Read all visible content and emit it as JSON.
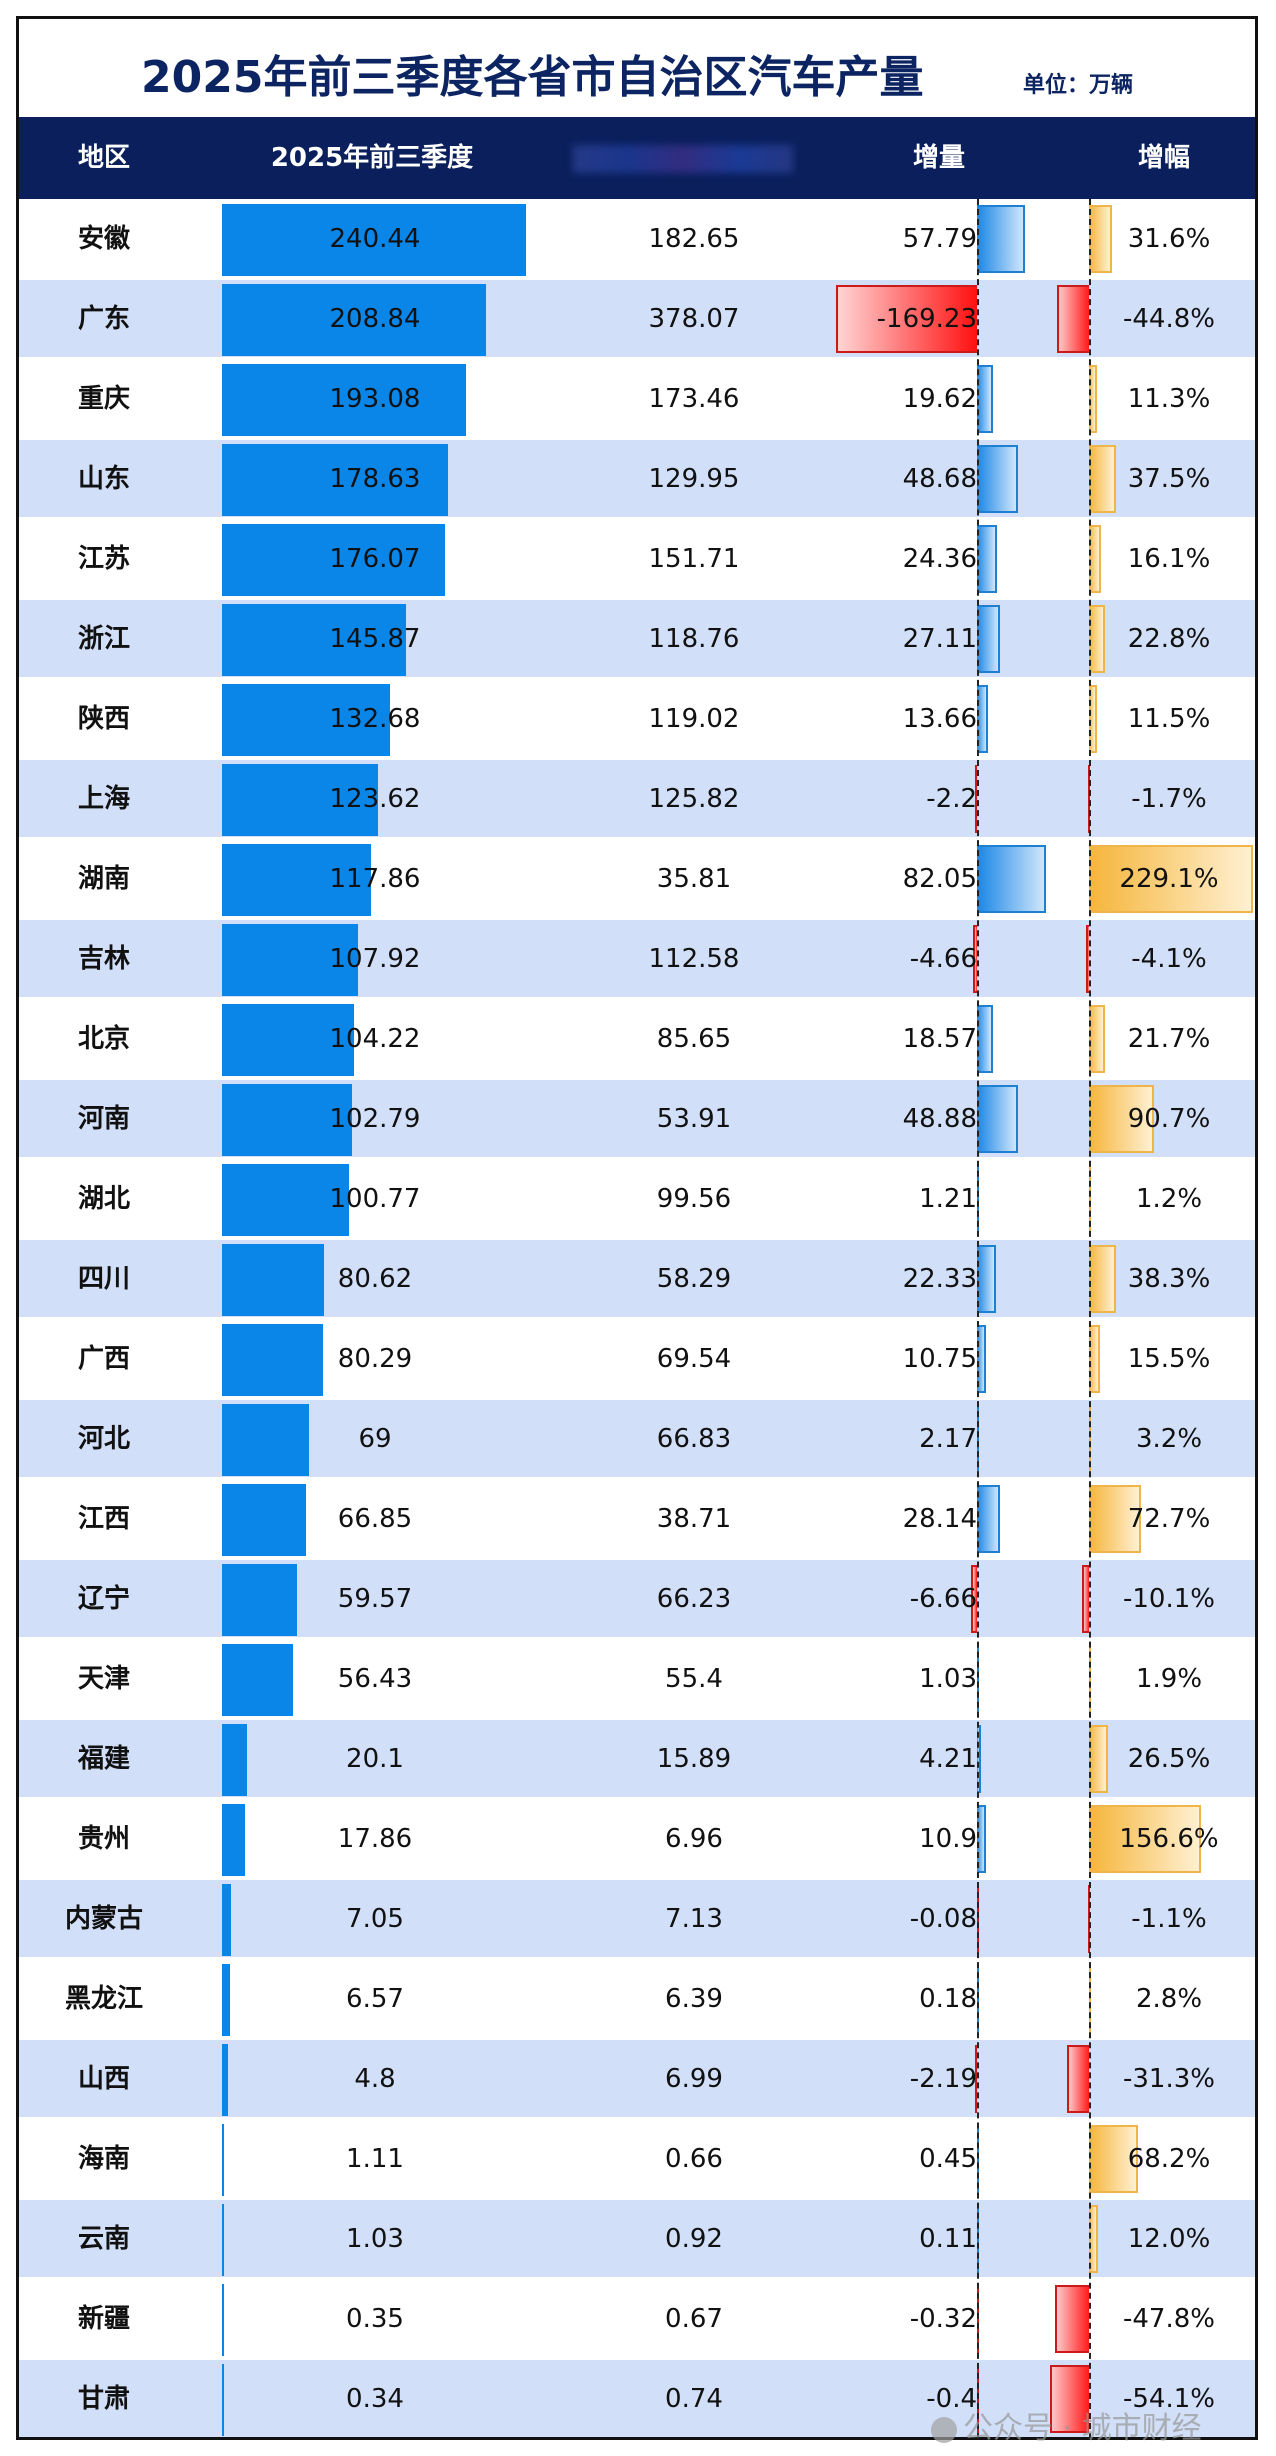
{
  "title": "2025年前三季度各省市自治区汽车产量",
  "unit": "单位：万辆",
  "headers": {
    "region": "地区",
    "current": "2025年前三季度",
    "previous": "",
    "increase": "增量",
    "growth": "增幅"
  },
  "colors": {
    "header_bg": "#0a1f5c",
    "title": "#0c2461",
    "row_alt": "#d2dff8",
    "bar": "#0a86e8",
    "positive_increase": "#1a86e6",
    "negative": "#ff1010",
    "positive_growth": "#f5b53a"
  },
  "watermark": "公众号 · 城市财经",
  "rows": [
    {
      "region": "安徽",
      "current": "240.44",
      "previous": "182.65",
      "increase": "57.79",
      "growth": "31.6%"
    },
    {
      "region": "广东",
      "current": "208.84",
      "previous": "378.07",
      "increase": "-169.23",
      "growth": "-44.8%"
    },
    {
      "region": "重庆",
      "current": "193.08",
      "previous": "173.46",
      "increase": "19.62",
      "growth": "11.3%"
    },
    {
      "region": "山东",
      "current": "178.63",
      "previous": "129.95",
      "increase": "48.68",
      "growth": "37.5%"
    },
    {
      "region": "江苏",
      "current": "176.07",
      "previous": "151.71",
      "increase": "24.36",
      "growth": "16.1%"
    },
    {
      "region": "浙江",
      "current": "145.87",
      "previous": "118.76",
      "increase": "27.11",
      "growth": "22.8%"
    },
    {
      "region": "陕西",
      "current": "132.68",
      "previous": "119.02",
      "increase": "13.66",
      "growth": "11.5%"
    },
    {
      "region": "上海",
      "current": "123.62",
      "previous": "125.82",
      "increase": "-2.2",
      "growth": "-1.7%"
    },
    {
      "region": "湖南",
      "current": "117.86",
      "previous": "35.81",
      "increase": "82.05",
      "growth": "229.1%"
    },
    {
      "region": "吉林",
      "current": "107.92",
      "previous": "112.58",
      "increase": "-4.66",
      "growth": "-4.1%"
    },
    {
      "region": "北京",
      "current": "104.22",
      "previous": "85.65",
      "increase": "18.57",
      "growth": "21.7%"
    },
    {
      "region": "河南",
      "current": "102.79",
      "previous": "53.91",
      "increase": "48.88",
      "growth": "90.7%"
    },
    {
      "region": "湖北",
      "current": "100.77",
      "previous": "99.56",
      "increase": "1.21",
      "growth": "1.2%"
    },
    {
      "region": "四川",
      "current": "80.62",
      "previous": "58.29",
      "increase": "22.33",
      "growth": "38.3%"
    },
    {
      "region": "广西",
      "current": "80.29",
      "previous": "69.54",
      "increase": "10.75",
      "growth": "15.5%"
    },
    {
      "region": "河北",
      "current": "69",
      "previous": "66.83",
      "increase": "2.17",
      "growth": "3.2%"
    },
    {
      "region": "江西",
      "current": "66.85",
      "previous": "38.71",
      "increase": "28.14",
      "growth": "72.7%"
    },
    {
      "region": "辽宁",
      "current": "59.57",
      "previous": "66.23",
      "increase": "-6.66",
      "growth": "-10.1%"
    },
    {
      "region": "天津",
      "current": "56.43",
      "previous": "55.4",
      "increase": "1.03",
      "growth": "1.9%"
    },
    {
      "region": "福建",
      "current": "20.1",
      "previous": "15.89",
      "increase": "4.21",
      "growth": "26.5%"
    },
    {
      "region": "贵州",
      "current": "17.86",
      "previous": "6.96",
      "increase": "10.9",
      "growth": "156.6%"
    },
    {
      "region": "内蒙古",
      "current": "7.05",
      "previous": "7.13",
      "increase": "-0.08",
      "growth": "-1.1%"
    },
    {
      "region": "黑龙江",
      "current": "6.57",
      "previous": "6.39",
      "increase": "0.18",
      "growth": "2.8%"
    },
    {
      "region": "山西",
      "current": "4.8",
      "previous": "6.99",
      "increase": "-2.19",
      "growth": "-31.3%"
    },
    {
      "region": "海南",
      "current": "1.11",
      "previous": "0.66",
      "increase": "0.45",
      "growth": "68.2%"
    },
    {
      "region": "云南",
      "current": "1.03",
      "previous": "0.92",
      "increase": "0.11",
      "growth": "12.0%"
    },
    {
      "region": "新疆",
      "current": "0.35",
      "previous": "0.67",
      "increase": "-0.32",
      "growth": "-47.8%"
    },
    {
      "region": "甘肃",
      "current": "0.34",
      "previous": "0.74",
      "increase": "-0.4",
      "growth": "-54.1%"
    }
  ],
  "chart_data": {
    "type": "table",
    "title": "2025年前三季度各省市自治区汽车产量",
    "unit": "万辆",
    "columns": [
      "地区",
      "2025年前三季度",
      "(obscured: 上年同期)",
      "增量",
      "增幅"
    ],
    "categories": [
      "安徽",
      "广东",
      "重庆",
      "山东",
      "江苏",
      "浙江",
      "陕西",
      "上海",
      "湖南",
      "吉林",
      "北京",
      "河南",
      "湖北",
      "四川",
      "广西",
      "河北",
      "江西",
      "辽宁",
      "天津",
      "福建",
      "贵州",
      "内蒙古",
      "黑龙江",
      "山西",
      "海南",
      "云南",
      "新疆",
      "甘肃"
    ],
    "series": [
      {
        "name": "2025年前三季度",
        "type": "bar",
        "values": [
          240.44,
          208.84,
          193.08,
          178.63,
          176.07,
          145.87,
          132.68,
          123.62,
          117.86,
          107.92,
          104.22,
          102.79,
          100.77,
          80.62,
          80.29,
          69,
          66.85,
          59.57,
          56.43,
          20.1,
          17.86,
          7.05,
          6.57,
          4.8,
          1.11,
          1.03,
          0.35,
          0.34
        ]
      },
      {
        "name": "上年同期",
        "values": [
          182.65,
          378.07,
          173.46,
          129.95,
          151.71,
          118.76,
          119.02,
          125.82,
          35.81,
          112.58,
          85.65,
          53.91,
          99.56,
          58.29,
          69.54,
          66.83,
          38.71,
          66.23,
          55.4,
          15.89,
          6.96,
          7.13,
          6.39,
          6.99,
          0.66,
          0.92,
          0.67,
          0.74
        ]
      },
      {
        "name": "增量",
        "type": "bar",
        "values": [
          57.79,
          -169.23,
          19.62,
          48.68,
          24.36,
          27.11,
          13.66,
          -2.2,
          82.05,
          -4.66,
          18.57,
          48.88,
          1.21,
          22.33,
          10.75,
          2.17,
          28.14,
          -6.66,
          1.03,
          4.21,
          10.9,
          -0.08,
          0.18,
          -2.19,
          0.45,
          0.11,
          -0.32,
          -0.4
        ]
      },
      {
        "name": "增幅(%)",
        "type": "bar",
        "values": [
          31.6,
          -44.8,
          11.3,
          37.5,
          16.1,
          22.8,
          11.5,
          -1.7,
          229.1,
          -4.1,
          21.7,
          90.7,
          1.2,
          38.3,
          15.5,
          3.2,
          72.7,
          -10.1,
          1.9,
          26.5,
          156.6,
          -1.1,
          2.8,
          -31.3,
          68.2,
          12.0,
          -47.8,
          -54.1
        ]
      }
    ]
  }
}
